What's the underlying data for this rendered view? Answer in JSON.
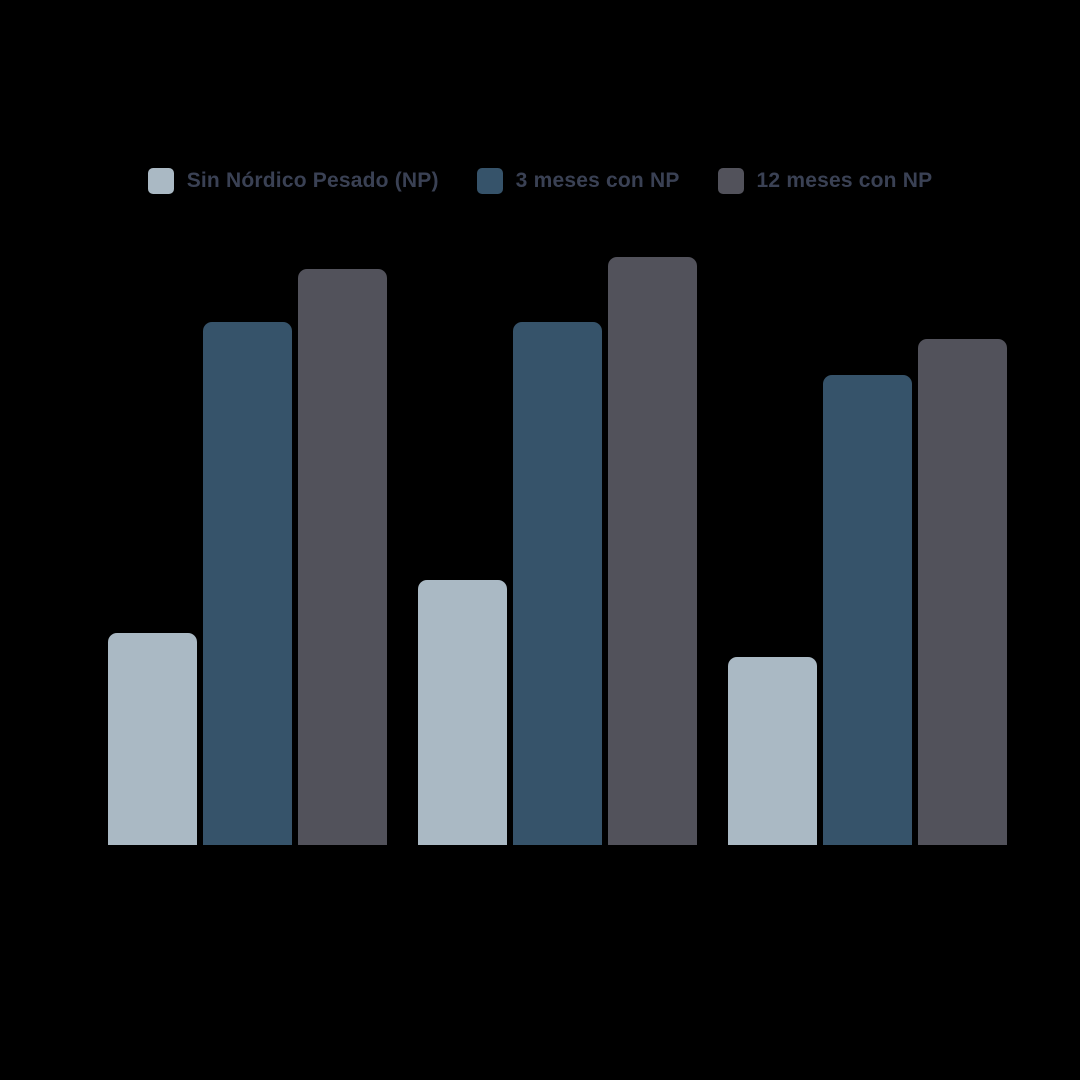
{
  "legend": {
    "items": [
      {
        "label": "Sin Nórdico Pesado (NP)",
        "color": "#aab9c4"
      },
      {
        "label": "3 meses con NP",
        "color": "#36536a"
      },
      {
        "label": "12 meses con NP",
        "color": "#52525b"
      }
    ]
  },
  "chart_data": {
    "type": "bar",
    "title": "",
    "categories": [
      "",
      "",
      ""
    ],
    "series": [
      {
        "name": "Sin Nórdico Pesado (NP)",
        "color": "#aab9c4",
        "values": [
          36,
          45,
          32
        ]
      },
      {
        "name": "3 meses con NP",
        "color": "#36536a",
        "values": [
          89,
          89,
          80
        ]
      },
      {
        "name": "12 meses con NP",
        "color": "#52525b",
        "values": [
          98,
          100,
          86
        ]
      }
    ],
    "ylim": [
      0,
      100
    ],
    "grid": false,
    "legend_position": "top",
    "background": "#000000",
    "note": "No axes, tick labels, value labels, or category labels are visible in the image; values are estimated from relative bar heights with the tallest bar normalized to 100."
  },
  "colors": {
    "background": "#000000",
    "legend_text": "#3a4154"
  }
}
